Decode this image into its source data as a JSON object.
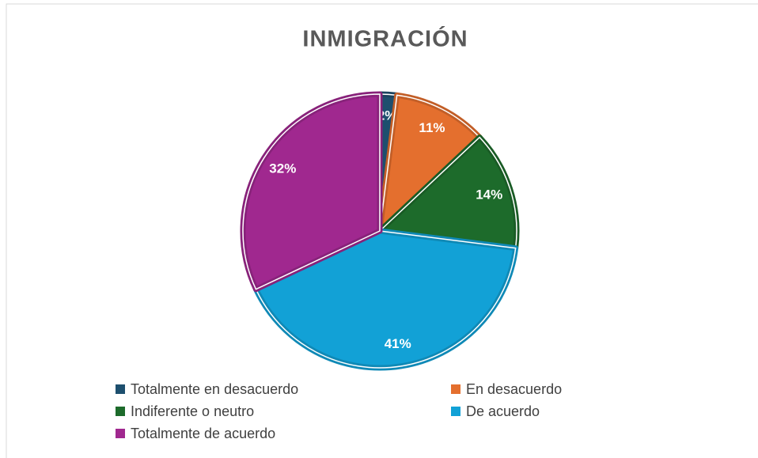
{
  "chart_data": {
    "type": "pie",
    "title": "INMIGRACIÓN",
    "categories": [
      "Totalmente en desacuerdo",
      "En desacuerdo",
      "Indiferente o neutro",
      "De acuerdo",
      "Totalmente de acuerdo"
    ],
    "values": [
      2,
      11,
      14,
      41,
      32
    ],
    "value_labels": [
      "2%",
      "11%",
      "14%",
      "41%",
      "32%"
    ],
    "colors": [
      "#1d4f6e",
      "#e46f2e",
      "#1d6b2b",
      "#12a1d6",
      "#a0288f"
    ],
    "legend": "bottom"
  }
}
